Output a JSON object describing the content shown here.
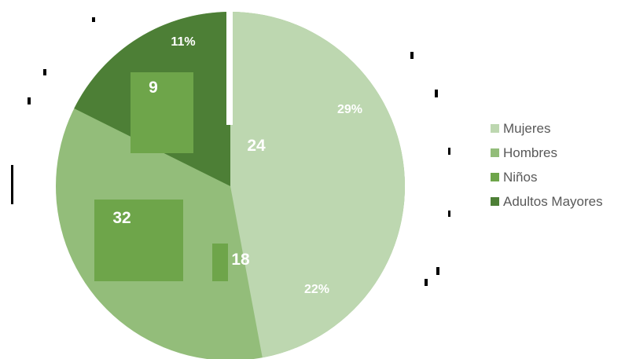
{
  "chart_data": {
    "type": "pie",
    "slices": [
      {
        "name": "Mujeres",
        "value": 24,
        "percent_label": "29%",
        "color": "#bdd7b0"
      },
      {
        "name": "Hombres",
        "value": 18,
        "percent_label": "22%",
        "color": "#93bd7a"
      },
      {
        "name": "Niños",
        "value": 32,
        "percent_label": "",
        "color": "#6ea54a"
      },
      {
        "name": "Adultos Mayores",
        "value": 9,
        "percent_label": "11%",
        "color": "#4d7f36"
      }
    ],
    "legend": {
      "position": "right",
      "items": [
        "Mujeres",
        "Hombres",
        "Niños",
        "Adultos Mayores"
      ]
    }
  }
}
